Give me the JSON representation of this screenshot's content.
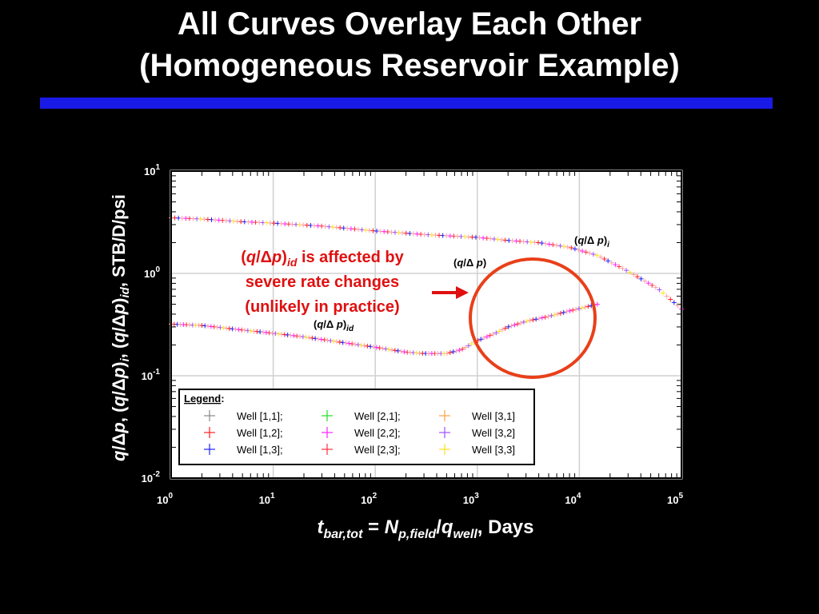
{
  "slide": {
    "title_line1": "All Curves Overlay Each Other",
    "title_line2": "(Homogeneous Reservoir Example)"
  },
  "colors": {
    "background": "#000000",
    "title_bar": "#1a1ae6",
    "annotation_text": "#e01010",
    "arrow": "#e01010",
    "circle": "#e8401a",
    "plot_background": "#ffffff",
    "grid": "#ffffff"
  },
  "chart_data": {
    "type": "scatter",
    "x_scale": "log",
    "y_scale": "log",
    "xlim": [
      1,
      100000
    ],
    "ylim": [
      0.01,
      10
    ],
    "x_ticks": [
      1,
      10,
      100,
      1000,
      10000,
      100000
    ],
    "y_ticks": [
      0.01,
      0.1,
      1,
      10
    ],
    "x_tick_labels": [
      {
        "base": "10",
        "exp": "0"
      },
      {
        "base": "10",
        "exp": "1"
      },
      {
        "base": "10",
        "exp": "2"
      },
      {
        "base": "10",
        "exp": "3"
      },
      {
        "base": "10",
        "exp": "4"
      },
      {
        "base": "10",
        "exp": "5"
      }
    ],
    "y_tick_labels": [
      {
        "base": "10",
        "exp": "-2"
      },
      {
        "base": "10",
        "exp": "-1"
      },
      {
        "base": "10",
        "exp": "0"
      },
      {
        "base": "10",
        "exp": "1"
      }
    ],
    "grid": true,
    "xlabel": "t_bar,tot = N_p,field/q_well, Days",
    "ylabel": "q/Δp, (q/Δp)_i, (q/Δp)_id, STB/D/psi",
    "curve_labels": {
      "qdp_i": "(q/Δ p)_i",
      "qdp": "(q/Δ p)",
      "qdp_id": "(q/Δ p)_id"
    },
    "legend": {
      "title": "Legend",
      "title_suffix": ":",
      "position": "bottom-left",
      "entries": [
        {
          "label": "Well [1,1];",
          "color": "#ffffff"
        },
        {
          "label": "Well [1,2];",
          "color": "#ff2020"
        },
        {
          "label": "Well [1,3];",
          "color": "#2020ff"
        },
        {
          "label": "Well [2,1];",
          "color": "#20e020"
        },
        {
          "label": "Well [2,2];",
          "color": "#ff20ff"
        },
        {
          "label": "Well [2,3];",
          "color": "#ff3040"
        },
        {
          "label": "Well [3,1]",
          "color": "#ffa040"
        },
        {
          "label": "Well [3,2]",
          "color": "#a050ff"
        },
        {
          "label": "Well [3,3]",
          "color": "#ffe020"
        }
      ]
    },
    "annotation": {
      "line1": "(q/Δp)id is affected by",
      "line1_q": "q",
      "line1_slash": "/",
      "line1_delta": "Δ",
      "line1_p": "p",
      "line1_sub": "id",
      "line1_rest": " is affected by",
      "line2": "severe rate changes",
      "line3": "(unlikely in practice)"
    },
    "series": [
      {
        "name": "(q/Δ p)_i",
        "color": "#ffa0a0",
        "x": [
          1,
          2,
          5,
          10,
          30,
          100,
          300,
          1000,
          2000,
          4000,
          8000,
          15000,
          30000,
          60000,
          100000
        ],
        "y": [
          3.5,
          3.4,
          3.2,
          3.1,
          2.9,
          2.6,
          2.4,
          2.25,
          2.1,
          2.0,
          1.8,
          1.5,
          1.05,
          0.7,
          0.45
        ]
      },
      {
        "name": "(q/Δ p)_id",
        "color": "#ffa0a0",
        "x": [
          1,
          2,
          5,
          10,
          20,
          50,
          100,
          200,
          300,
          500,
          700,
          1000,
          1500,
          2000,
          3000,
          5000,
          8000,
          15000
        ],
        "y": [
          0.32,
          0.31,
          0.28,
          0.26,
          0.24,
          0.21,
          0.19,
          0.17,
          0.165,
          0.165,
          0.18,
          0.22,
          0.26,
          0.3,
          0.34,
          0.38,
          0.43,
          0.5
        ]
      }
    ]
  }
}
